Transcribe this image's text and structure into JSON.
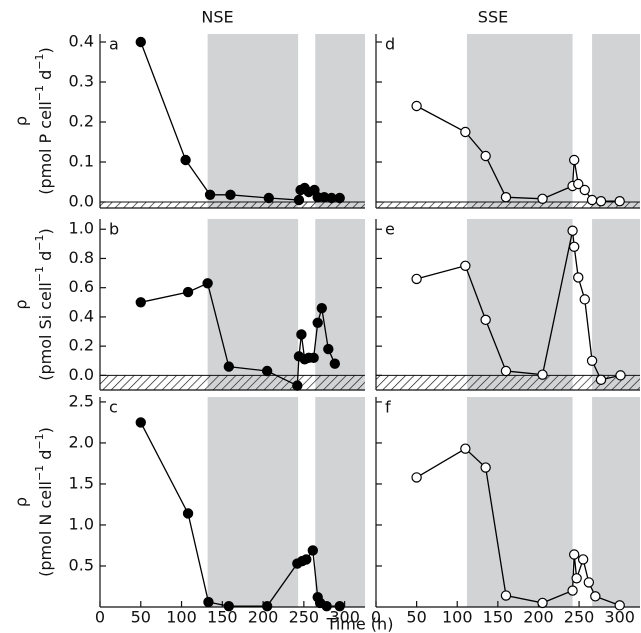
{
  "chart_data": [
    {
      "type": "line",
      "label": "a",
      "title": "NSE",
      "ylabel": "ρ",
      "ylabel_unit": [
        "(pmol P cell",
        "−1",
        " d",
        "−1",
        ")"
      ],
      "x": [
        50,
        105,
        135,
        160,
        207,
        244,
        246,
        251,
        256,
        263,
        267,
        275,
        284,
        294
      ],
      "values": [
        0.4,
        0.105,
        0.018,
        0.018,
        0.01,
        0.005,
        0.03,
        0.035,
        0.025,
        0.03,
        0.012,
        0.012,
        0.01,
        0.01
      ],
      "color": "#000000",
      "marker_fill": "#000000",
      "xlim": [
        0,
        325
      ],
      "ylim": [
        -0.015,
        0.42
      ],
      "yticks": [
        {
          "value": 0,
          "label": "0.0"
        },
        0.1,
        0.2,
        0.3,
        0.4
      ],
      "shaded_spans": [
        [
          132,
          243
        ],
        [
          264,
          325
        ]
      ],
      "zero_hatch": true
    },
    {
      "type": "line",
      "label": "b",
      "ylabel": "ρ",
      "ylabel_unit": [
        "(pmol Si cell",
        "−1",
        " d",
        "−1",
        ")"
      ],
      "x": [
        50,
        108,
        132,
        158,
        205,
        242,
        244,
        247,
        251,
        256,
        262,
        267,
        272,
        280,
        288
      ],
      "values": [
        0.5,
        0.57,
        0.63,
        0.06,
        0.03,
        -0.07,
        0.13,
        0.28,
        0.11,
        0.12,
        0.12,
        0.36,
        0.46,
        0.18,
        0.08
      ],
      "color": "#000000",
      "marker_fill": "#000000",
      "xlim": [
        0,
        325
      ],
      "ylim": [
        -0.1,
        1.07
      ],
      "yticks": [
        {
          "value": 0,
          "label": "0.0"
        },
        0.2,
        0.4,
        0.6,
        0.8,
        {
          "value": 1,
          "label": "1.0"
        }
      ],
      "shaded_spans": [
        [
          132,
          243
        ],
        [
          264,
          325
        ]
      ],
      "zero_hatch": true
    },
    {
      "type": "line",
      "label": "c",
      "ylabel": "ρ",
      "ylabel_unit": [
        "(pmol N cell",
        "−1",
        " d",
        "−1",
        ")"
      ],
      "xlabel": "Time (h)",
      "x": [
        50,
        108,
        133,
        158,
        205,
        242,
        248,
        253,
        261,
        267,
        270,
        278,
        294
      ],
      "values": [
        2.25,
        1.14,
        0.06,
        0.01,
        0.01,
        0.53,
        0.56,
        0.58,
        0.69,
        0.12,
        0.05,
        0.01,
        0.01
      ],
      "color": "#000000",
      "marker_fill": "#000000",
      "xlim": [
        0,
        325
      ],
      "ylim": [
        0,
        2.56
      ],
      "xticks": [
        0,
        50,
        100,
        150,
        200,
        250,
        300
      ],
      "yticks": [
        0.5,
        {
          "value": 1,
          "label": "1.0"
        },
        1.5,
        {
          "value": 2,
          "label": "2.0"
        },
        2.5
      ],
      "shaded_spans": [
        [
          132,
          243
        ],
        [
          264,
          325
        ]
      ],
      "zero_hatch": false
    },
    {
      "type": "line",
      "label": "d",
      "title": "SSE",
      "x": [
        50,
        110,
        135,
        160,
        205,
        242,
        244,
        249,
        257,
        266,
        277,
        300
      ],
      "values": [
        0.24,
        0.175,
        0.115,
        0.012,
        0.008,
        0.04,
        0.105,
        0.045,
        0.03,
        0.005,
        0.002,
        0.002
      ],
      "color": "#000000",
      "marker_fill": "#ffffff",
      "xlim": [
        0,
        325
      ],
      "ylim": [
        -0.015,
        0.42
      ],
      "shaded_spans": [
        [
          112,
          242
        ],
        [
          266,
          325
        ]
      ],
      "zero_hatch": true
    },
    {
      "type": "line",
      "label": "e",
      "x": [
        50,
        110,
        135,
        160,
        205,
        242,
        244,
        249,
        257,
        266,
        277,
        301
      ],
      "values": [
        0.66,
        0.75,
        0.38,
        0.03,
        0.005,
        0.99,
        0.88,
        0.67,
        0.52,
        0.1,
        -0.03,
        0.0
      ],
      "color": "#000000",
      "marker_fill": "#ffffff",
      "xlim": [
        0,
        325
      ],
      "ylim": [
        -0.1,
        1.07
      ],
      "shaded_spans": [
        [
          112,
          242
        ],
        [
          266,
          325
        ]
      ],
      "zero_hatch": true
    },
    {
      "type": "line",
      "label": "f",
      "x": [
        50,
        110,
        135,
        160,
        205,
        242,
        244,
        247,
        255,
        262,
        270,
        300
      ],
      "values": [
        1.58,
        1.93,
        1.7,
        0.14,
        0.05,
        0.2,
        0.64,
        0.35,
        0.58,
        0.3,
        0.13,
        0.02
      ],
      "color": "#000000",
      "marker_fill": "#ffffff",
      "xlim": [
        0,
        325
      ],
      "ylim": [
        0,
        2.56
      ],
      "xticks": [
        0,
        50,
        100,
        150,
        200,
        250,
        300
      ],
      "shaded_spans": [
        [
          112,
          242
        ],
        [
          266,
          325
        ]
      ],
      "zero_hatch": false
    }
  ]
}
